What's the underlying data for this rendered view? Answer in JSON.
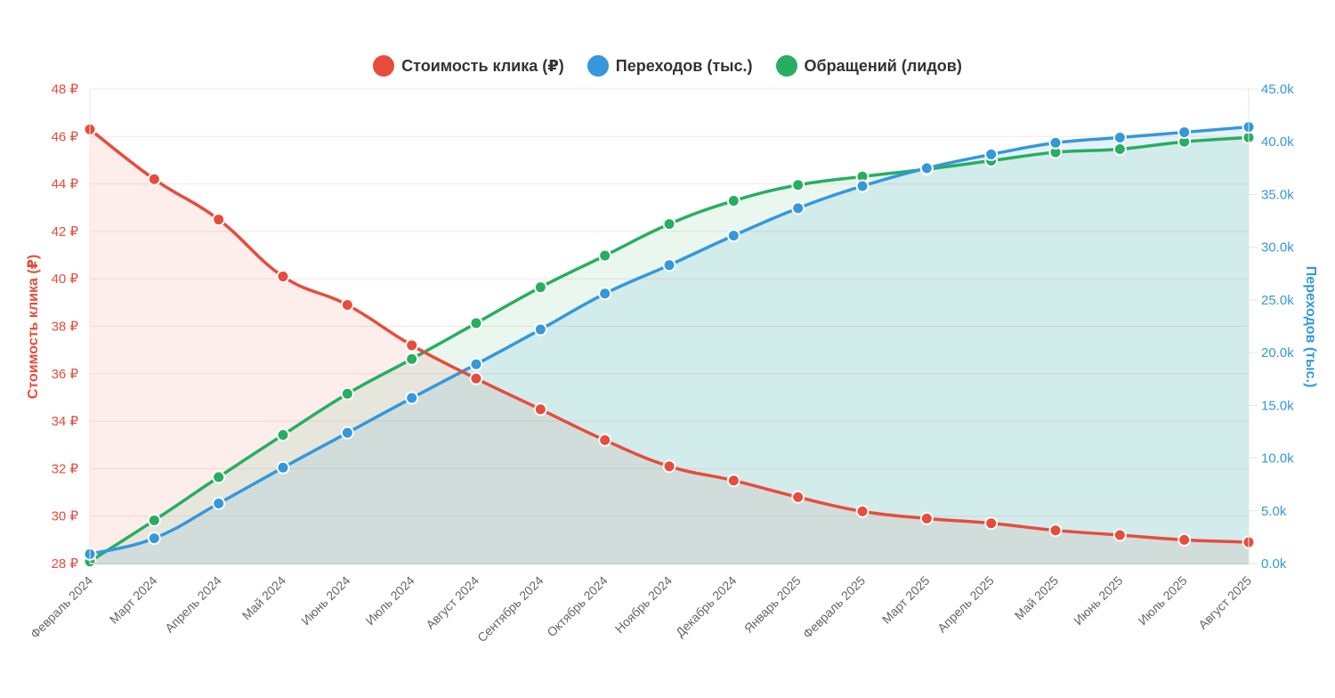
{
  "legend": [
    {
      "label": "Стоимость клика (₽)",
      "color": "#e74c3c",
      "icon": "circle-marker"
    },
    {
      "label": "Переходов (тыс.)",
      "color": "#3498db",
      "icon": "circle-marker"
    },
    {
      "label": "Обращений (лидов)",
      "color": "#27ae60",
      "icon": "circle-marker"
    }
  ],
  "chart_data": {
    "type": "line",
    "title": "",
    "grid": true,
    "legend_position": "top-center",
    "categories": [
      "Февраль 2024",
      "Март 2024",
      "Апрель 2024",
      "Май 2024",
      "Июнь 2024",
      "Июль 2024",
      "Август 2024",
      "Сентябрь 2024",
      "Октябрь 2024",
      "Ноябрь 2024",
      "Декабрь 2024",
      "Январь 2025",
      "Февраль 2025",
      "Март 2025",
      "Апрель 2025",
      "Май 2025",
      "Июнь 2025",
      "Июль 2025",
      "Август 2025"
    ],
    "y_left": {
      "label": "Стоимость клика (₽)",
      "ylim": [
        28,
        48
      ],
      "ticks": [
        28,
        30,
        32,
        34,
        36,
        38,
        40,
        42,
        44,
        46,
        48
      ],
      "tick_labels": [
        "28 ₽",
        "30 ₽",
        "32 ₽",
        "34 ₽",
        "36 ₽",
        "38 ₽",
        "40 ₽",
        "42 ₽",
        "44 ₽",
        "46 ₽",
        "48 ₽"
      ],
      "color": "#e74c3c"
    },
    "y_right": {
      "label": "Переходов (тыс.)",
      "ylim": [
        0,
        45
      ],
      "ticks": [
        0,
        5,
        10,
        15,
        20,
        25,
        30,
        35,
        40,
        45
      ],
      "tick_labels": [
        "0.0k",
        "5.0k",
        "10.0k",
        "15.0k",
        "20.0k",
        "25.0k",
        "30.0k",
        "35.0k",
        "40.0k",
        "45.0k"
      ],
      "color": "#3498db"
    },
    "series": [
      {
        "name": "Стоимость клика (₽)",
        "axis": "left",
        "color": "#e74c3c",
        "fill": "rgba(231,76,60,0.10)",
        "values": [
          46.3,
          44.2,
          42.5,
          40.1,
          38.9,
          37.2,
          35.8,
          34.5,
          33.2,
          32.1,
          31.5,
          30.8,
          30.2,
          29.9,
          29.7,
          29.4,
          29.2,
          29.0,
          28.9
        ]
      },
      {
        "name": "Переходов (тыс.)",
        "axis": "right",
        "color": "#3498db",
        "fill": "rgba(52,152,219,0.10)",
        "values": [
          0.9,
          2.4,
          5.7,
          9.1,
          12.4,
          15.7,
          18.9,
          22.2,
          25.6,
          28.3,
          31.1,
          33.7,
          35.8,
          37.5,
          38.8,
          39.9,
          40.4,
          40.9,
          41.4
        ]
      },
      {
        "name": "Обращений (лидов)",
        "axis": "right",
        "color": "#27ae60",
        "fill": "rgba(39,174,96,0.10)",
        "values": [
          0.2,
          4.1,
          8.2,
          12.2,
          16.1,
          19.4,
          22.8,
          26.2,
          29.2,
          32.2,
          34.4,
          35.9,
          36.7,
          37.4,
          38.2,
          39.0,
          39.3,
          40.0,
          40.4
        ]
      }
    ]
  }
}
